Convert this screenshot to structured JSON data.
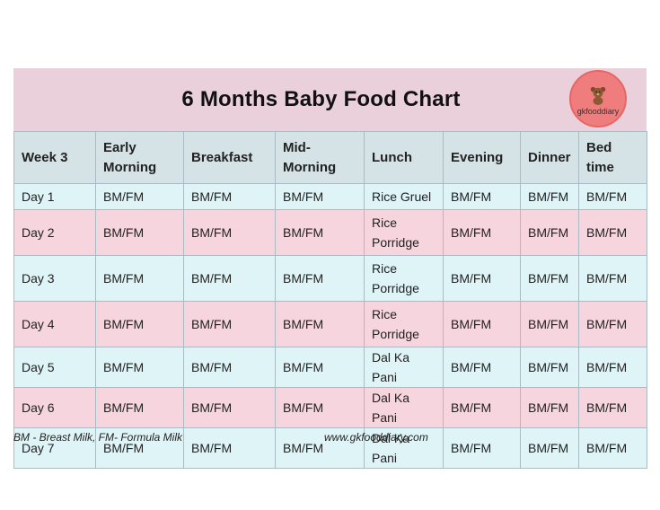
{
  "title": "6 Months Baby Food Chart",
  "logo": {
    "text": "gkfooddiary",
    "icon": "teddy-bear-icon",
    "color": "#f07d7d"
  },
  "headers": [
    "Week 3",
    "Early Morning",
    "Breakfast",
    "Mid-Morning",
    "Lunch",
    "Evening",
    "Dinner",
    "Bed time"
  ],
  "rows": [
    [
      "Day 1",
      "BM/FM",
      "BM/FM",
      "BM/FM",
      "Rice Gruel",
      "BM/FM",
      "BM/FM",
      "BM/FM"
    ],
    [
      "Day 2",
      "BM/FM",
      "BM/FM",
      "BM/FM",
      "Rice Porridge",
      "BM/FM",
      "BM/FM",
      "BM/FM"
    ],
    [
      "Day 3",
      "BM/FM",
      "BM/FM",
      "BM/FM",
      "Rice Porridge",
      "BM/FM",
      "BM/FM",
      "BM/FM"
    ],
    [
      "Day 4",
      "BM/FM",
      "BM/FM",
      "BM/FM",
      "Rice Porridge",
      "BM/FM",
      "BM/FM",
      "BM/FM"
    ],
    [
      "Day 5",
      "BM/FM",
      "BM/FM",
      "BM/FM",
      "Dal Ka Pani",
      "BM/FM",
      "BM/FM",
      "BM/FM"
    ],
    [
      "Day 6",
      "BM/FM",
      "BM/FM",
      "BM/FM",
      "Dal Ka Pani",
      "BM/FM",
      "BM/FM",
      "BM/FM"
    ],
    [
      "Day 7",
      "BM/FM",
      "BM/FM",
      "BM/FM",
      "Dal Ka Pani",
      "BM/FM",
      "BM/FM",
      "BM/FM"
    ]
  ],
  "footer": {
    "legend": "BM - Breast Milk, FM- Formula Milk",
    "website": "www.gkfooddiary.com"
  },
  "colors": {
    "title_bg": "#ead0da",
    "header_bg": "#d6e3e6",
    "row_blue": "#dff4f7",
    "row_pink": "#f7d5df"
  }
}
